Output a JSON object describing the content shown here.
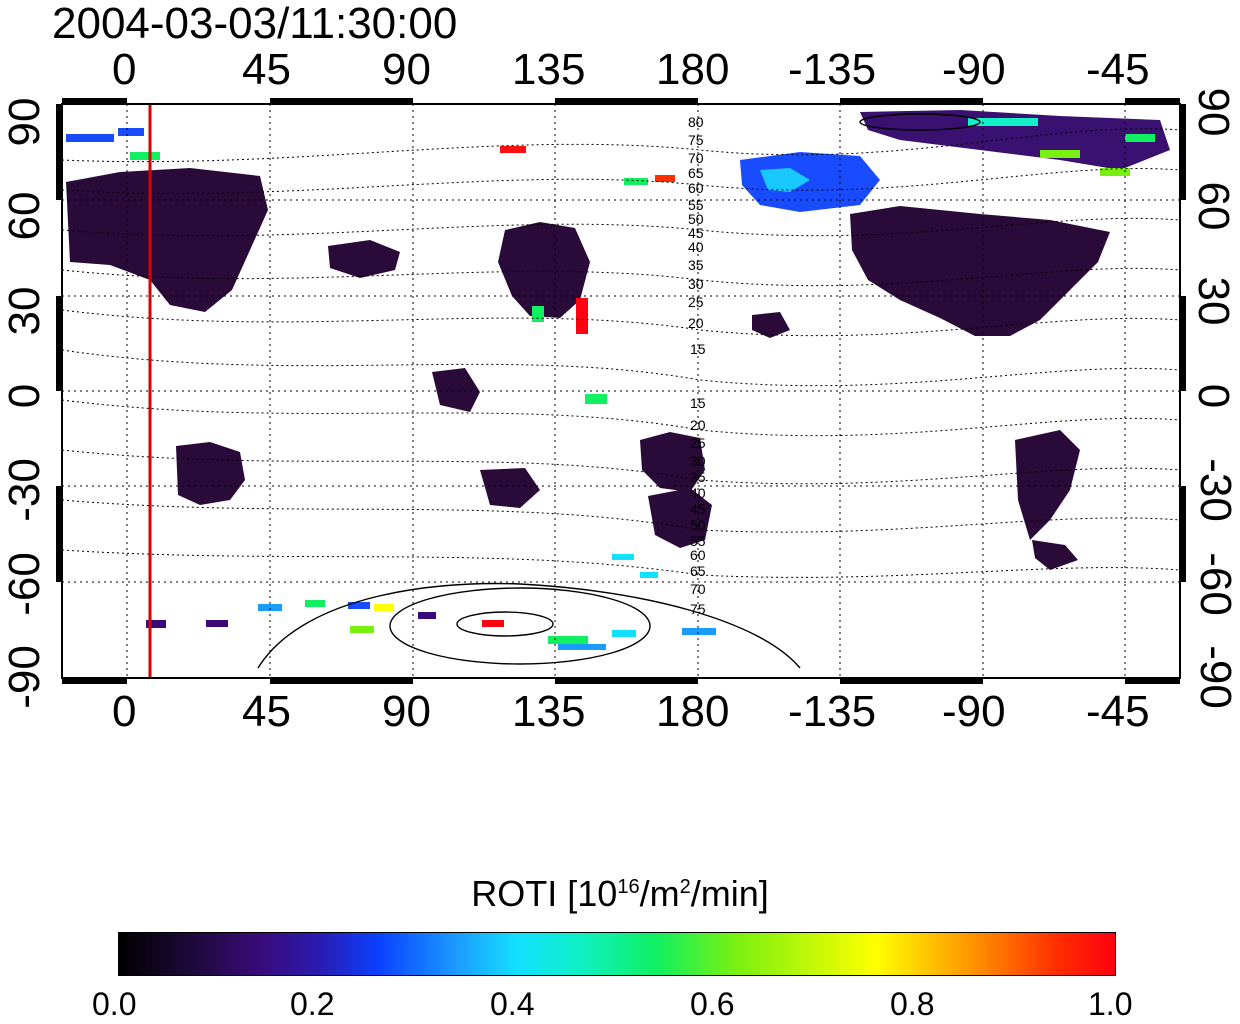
{
  "title": "2004-03-03/11:30:00",
  "map": {
    "x_ticks": [
      "0",
      "45",
      "90",
      "135",
      "180",
      "-135",
      "-90",
      "-45"
    ],
    "y_ticks": [
      "90",
      "60",
      "30",
      "0",
      "-30",
      "-60",
      "-90"
    ],
    "contour_labels": [
      "80",
      "75",
      "70",
      "65",
      "60",
      "55",
      "50",
      "45",
      "40",
      "35",
      "30",
      "25",
      "20",
      "15",
      "15",
      "20",
      "25",
      "30",
      "35",
      "40",
      "45",
      "50",
      "55",
      "60",
      "65",
      "70",
      "75"
    ],
    "red_line_longitude": 8,
    "colors": {
      "frame": "#000000",
      "meridian": "#dd0000",
      "land": "#ffffff",
      "low_roti": "#2a0a3a"
    }
  },
  "colorbar": {
    "title_prefix": "ROTI  [10",
    "title_sup1": "16",
    "title_mid": "/m",
    "title_sup2": "2",
    "title_suffix": "/min]",
    "ticks": [
      "0.0",
      "0.2",
      "0.4",
      "0.6",
      "0.8",
      "1.0"
    ]
  }
}
